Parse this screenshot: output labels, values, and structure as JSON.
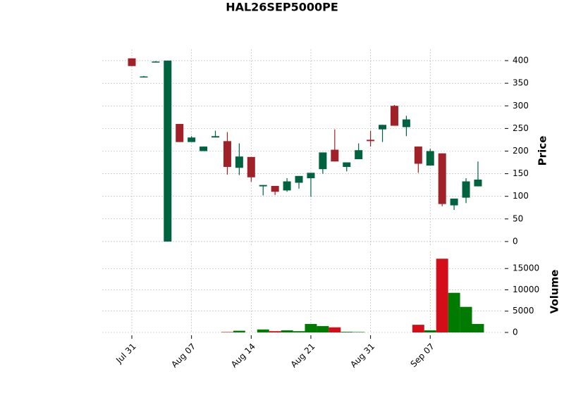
{
  "chart_data": {
    "type": "candlestick",
    "title": "HAL26SEP5000PE",
    "ylabel": "Price",
    "y2label": "Volume",
    "categories": [
      "Jul 31",
      null,
      null,
      null,
      null,
      "Aug 07",
      null,
      null,
      null,
      null,
      "Aug 14",
      null,
      null,
      null,
      null,
      "Aug 21",
      null,
      null,
      null,
      null,
      "Aug 31",
      null,
      null,
      null,
      null,
      "Sep 07",
      null,
      null,
      null,
      null
    ],
    "open": [
      405,
      365,
      396,
      0,
      260,
      220,
      200,
      230,
      222,
      163,
      187,
      122,
      123,
      113,
      130,
      140,
      160,
      203,
      165,
      182,
      225,
      248,
      300,
      253,
      210,
      168,
      195,
      80,
      97,
      122
    ],
    "high": [
      405,
      366,
      399,
      400,
      260,
      233,
      210,
      245,
      242,
      217,
      187,
      125,
      123,
      140,
      145,
      152,
      197,
      248,
      175,
      217,
      245,
      258,
      302,
      278,
      210,
      205,
      195,
      95,
      140,
      177
    ],
    "low": [
      388,
      364,
      396,
      0,
      220,
      220,
      200,
      230,
      148,
      147,
      132,
      102,
      103,
      110,
      117,
      99,
      150,
      177,
      155,
      182,
      210,
      220,
      256,
      233,
      152,
      168,
      78,
      70,
      85,
      122
    ],
    "close": [
      388,
      365,
      398,
      400,
      220,
      230,
      210,
      233,
      165,
      188,
      142,
      125,
      110,
      133,
      145,
      152,
      197,
      177,
      175,
      202,
      222,
      258,
      256,
      270,
      172,
      200,
      83,
      95,
      133,
      137
    ],
    "volume": [
      0,
      0,
      0,
      0,
      0,
      0,
      0,
      0,
      100,
      400,
      0,
      700,
      300,
      500,
      300,
      2000,
      1500,
      1200,
      150,
      100,
      0,
      0,
      0,
      0,
      1800,
      500,
      17300,
      9300,
      6000,
      2000
    ],
    "up_color": "#006340",
    "down_color": "#a02128",
    "volume_up_color": "#007a00",
    "volume_down_color": "#d50d18",
    "ylim": [
      -11,
      425
    ],
    "yticks": [
      0,
      50,
      100,
      150,
      200,
      250,
      300,
      350,
      400
    ],
    "y2lim": [
      0,
      19000
    ],
    "y2ticks": [
      0,
      5000,
      10000,
      15000
    ],
    "grid": true
  }
}
